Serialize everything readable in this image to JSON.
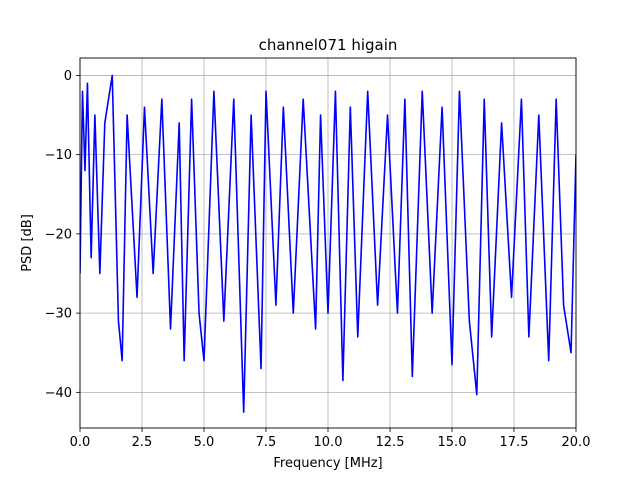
{
  "chart_data": {
    "type": "line",
    "title": "channel071 higain",
    "xlabel": "Frequency [MHz]",
    "ylabel": "PSD [dB]",
    "xlim": [
      0,
      20
    ],
    "ylim": [
      -44.5,
      2.2
    ],
    "grid": true,
    "line_color": "#0000ff",
    "x_ticks": [
      0,
      2.5,
      5,
      7.5,
      10,
      12.5,
      15,
      17.5,
      20
    ],
    "x_tick_labels": [
      "0.0",
      "2.5",
      "5.0",
      "7.5",
      "10.0",
      "12.5",
      "15.0",
      "17.5",
      "20.0"
    ],
    "y_ticks": [
      0,
      -10,
      -20,
      -30,
      -40
    ],
    "y_tick_labels": [
      "0",
      "−10",
      "−20",
      "−30",
      "−40"
    ],
    "series": [
      {
        "x": [
          0.0,
          0.1,
          0.2,
          0.3,
          0.45,
          0.6,
          0.8,
          1.0,
          1.3,
          1.55,
          1.7,
          1.9,
          2.3,
          2.6,
          2.95,
          3.3,
          3.65,
          4.0,
          4.2,
          4.5,
          4.8,
          5.0,
          5.4,
          5.8,
          6.2,
          6.6,
          6.9,
          7.3,
          7.5,
          7.9,
          8.2,
          8.6,
          9.0,
          9.5,
          9.7,
          10.0,
          10.3,
          10.6,
          10.9,
          11.2,
          11.6,
          12.0,
          12.4,
          12.8,
          13.1,
          13.4,
          13.8,
          14.2,
          14.6,
          15.0,
          15.3,
          15.7,
          16.0,
          16.3,
          16.6,
          17.0,
          17.4,
          17.8,
          18.1,
          18.5,
          18.9,
          19.2,
          19.5,
          19.8,
          20.0
        ],
        "y": [
          -25,
          -2,
          -12,
          -1,
          -23,
          -5,
          -25,
          -6,
          0,
          -31,
          -36,
          -5,
          -28,
          -4,
          -25,
          -3,
          -32,
          -6,
          -36,
          -3,
          -30,
          -36,
          -2,
          -31,
          -3,
          -42.5,
          -5,
          -37,
          -2,
          -29,
          -4,
          -30,
          -3,
          -32,
          -5,
          -30,
          -2,
          -38.5,
          -4,
          -33,
          -2,
          -29,
          -5,
          -30,
          -3,
          -38,
          -2,
          -30,
          -4,
          -36.5,
          -2,
          -31,
          -40.3,
          -3,
          -33,
          -6,
          -28,
          -3,
          -33,
          -5,
          -36,
          -3,
          -29,
          -35,
          -10
        ]
      }
    ]
  }
}
